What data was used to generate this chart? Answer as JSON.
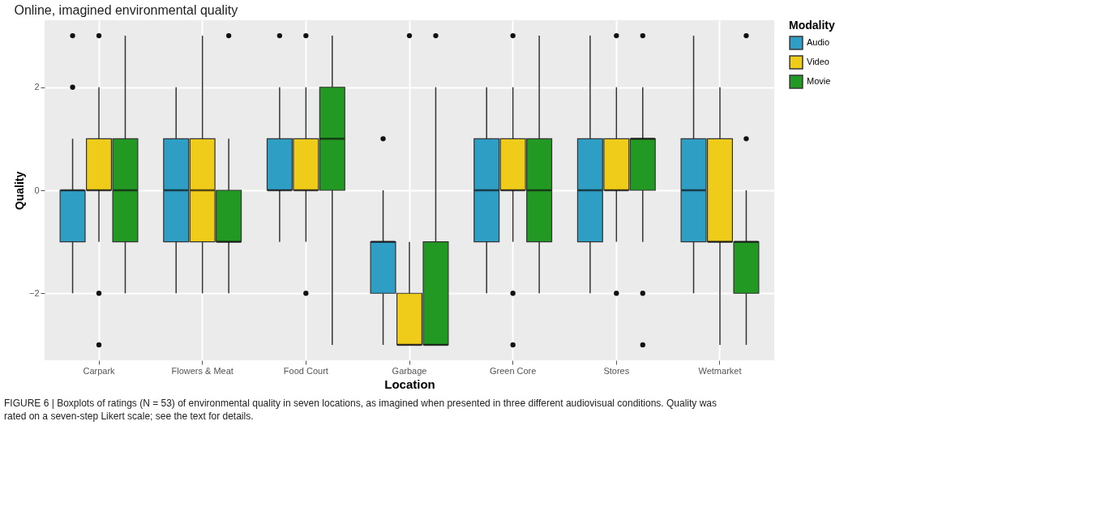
{
  "chart_data": {
    "type": "box",
    "title": "Online, imagined environmental quality",
    "xlabel": "Location",
    "ylabel": "Quality",
    "legend_title": "Modality",
    "legend": "right",
    "grid": true,
    "categories": [
      "Carpark",
      "Flowers & Meat",
      "Food Court",
      "Garbage",
      "Green Core",
      "Stores",
      "Wetmarket"
    ],
    "ylim": [
      -3.3,
      3.3
    ],
    "yticks": [
      -2,
      0,
      2
    ],
    "series": [
      {
        "name": "Audio",
        "color": "#2e9ec4",
        "boxes": [
          {
            "low": -2,
            "q1": -1,
            "median": 0,
            "q3": 0,
            "high": 1,
            "outliers": [
              3,
              2
            ]
          },
          {
            "low": -2,
            "q1": -1,
            "median": 0,
            "q3": 1,
            "high": 2
          },
          {
            "low": -1,
            "q1": 0,
            "median": 0,
            "q3": 1,
            "high": 2,
            "outliers": [
              3
            ]
          },
          {
            "low": -3,
            "q1": -2,
            "median": -1,
            "q3": -1,
            "high": 0,
            "outliers": [
              1
            ]
          },
          {
            "low": -2,
            "q1": -1,
            "median": 0,
            "q3": 1,
            "high": 2
          },
          {
            "low": -2,
            "q1": -1,
            "median": 0,
            "q3": 1,
            "high": 3
          },
          {
            "low": -2,
            "q1": -1,
            "median": 0,
            "q3": 1,
            "high": 3
          }
        ]
      },
      {
        "name": "Video",
        "color": "#f0cc1a",
        "boxes": [
          {
            "low": -1,
            "q1": 0,
            "median": 0,
            "q3": 1,
            "high": 2,
            "outliers": [
              3,
              -2,
              -3
            ]
          },
          {
            "low": -2,
            "q1": -1,
            "median": 0,
            "q3": 1,
            "high": 3
          },
          {
            "low": -1,
            "q1": 0,
            "median": 0,
            "q3": 1,
            "high": 2,
            "outliers": [
              3,
              -2
            ]
          },
          {
            "low": -3,
            "q1": -3,
            "median": -3,
            "q3": -2,
            "high": -1,
            "outliers": [
              3
            ]
          },
          {
            "low": -1,
            "q1": 0,
            "median": 0,
            "q3": 1,
            "high": 2,
            "outliers": [
              3,
              -2,
              -3
            ]
          },
          {
            "low": -1,
            "q1": 0,
            "median": 0,
            "q3": 1,
            "high": 2,
            "outliers": [
              3,
              -2
            ]
          },
          {
            "low": -3,
            "q1": -1,
            "median": -1,
            "q3": 1,
            "high": 2
          }
        ]
      },
      {
        "name": "Movie",
        "color": "#229922",
        "boxes": [
          {
            "low": -2,
            "q1": -1,
            "median": 0,
            "q3": 1,
            "high": 3
          },
          {
            "low": -2,
            "q1": -1,
            "median": -1,
            "q3": 0,
            "high": 1,
            "outliers": [
              3
            ]
          },
          {
            "low": -3,
            "q1": 0,
            "median": 1,
            "q3": 2,
            "high": 3
          },
          {
            "low": -3,
            "q1": -3,
            "median": -3,
            "q3": -1,
            "high": 2,
            "outliers": [
              3
            ]
          },
          {
            "low": -2,
            "q1": -1,
            "median": 0,
            "q3": 1,
            "high": 3
          },
          {
            "low": -1,
            "q1": 0,
            "median": 1,
            "q3": 1,
            "high": 2,
            "outliers": [
              3,
              -2,
              -3
            ]
          },
          {
            "low": -3,
            "q1": -2,
            "median": -1,
            "q3": -1,
            "high": 0,
            "outliers": [
              3,
              1
            ]
          }
        ]
      }
    ],
    "annotations": [
      "FIGURE 6 | Boxplots of ratings (N = 53) of environmental quality in seven locations, as imagined when presented in three different audiovisual conditions. Quality was rated on a seven-step Likert scale; see the text for details."
    ]
  }
}
